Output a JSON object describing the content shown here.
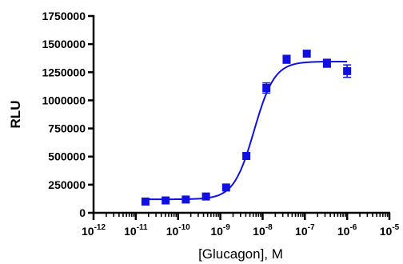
{
  "chart_data": {
    "type": "scatter",
    "title": "",
    "xlabel": "[Glucagon], M",
    "ylabel": "RLU",
    "x_scale": "log",
    "x_ticks": [
      1e-12,
      1e-11,
      1e-10,
      1e-09,
      1e-08,
      1e-07,
      1e-06,
      1e-05
    ],
    "x_tick_labels": [
      {
        "base": "10",
        "exp": "-12"
      },
      {
        "base": "10",
        "exp": "-11"
      },
      {
        "base": "10",
        "exp": "-10"
      },
      {
        "base": "10",
        "exp": "-9"
      },
      {
        "base": "10",
        "exp": "-8"
      },
      {
        "base": "10",
        "exp": "-7"
      },
      {
        "base": "10",
        "exp": "-6"
      },
      {
        "base": "10",
        "exp": "-5"
      }
    ],
    "xlim": [
      1e-12,
      1e-05
    ],
    "ylim": [
      0,
      1750000
    ],
    "y_ticks": [
      0,
      250000,
      500000,
      750000,
      1000000,
      1250000,
      1500000,
      1750000
    ],
    "y_tick_labels": [
      "0",
      "250000",
      "500000",
      "750000",
      "1000000",
      "1250000",
      "1500000",
      "1750000"
    ],
    "grid": false,
    "color": "#1010e0",
    "series": [
      {
        "points": [
          {
            "x": 1.69e-11,
            "y": 100000,
            "err": 0
          },
          {
            "x": 5.08e-11,
            "y": 110000,
            "err": 0
          },
          {
            "x": 1.52e-10,
            "y": 118000,
            "err": 0
          },
          {
            "x": 4.57e-10,
            "y": 145000,
            "err": 0
          },
          {
            "x": 1.37e-09,
            "y": 225000,
            "err": 0
          },
          {
            "x": 4.12e-09,
            "y": 505000,
            "err": 0
          },
          {
            "x": 1.23e-08,
            "y": 1110000,
            "err": 45000
          },
          {
            "x": 3.7e-08,
            "y": 1365000,
            "err": 35000
          },
          {
            "x": 1.11e-07,
            "y": 1415000,
            "err": 0
          },
          {
            "x": 3.33e-07,
            "y": 1330000,
            "err": 35000
          },
          {
            "x": 1e-06,
            "y": 1260000,
            "err": 55000
          }
        ]
      }
    ],
    "fit": {
      "model": "four-parameter logistic",
      "bottom": 120000,
      "top": 1345000,
      "ec50": 6.3e-09,
      "hill": 1.8
    }
  }
}
